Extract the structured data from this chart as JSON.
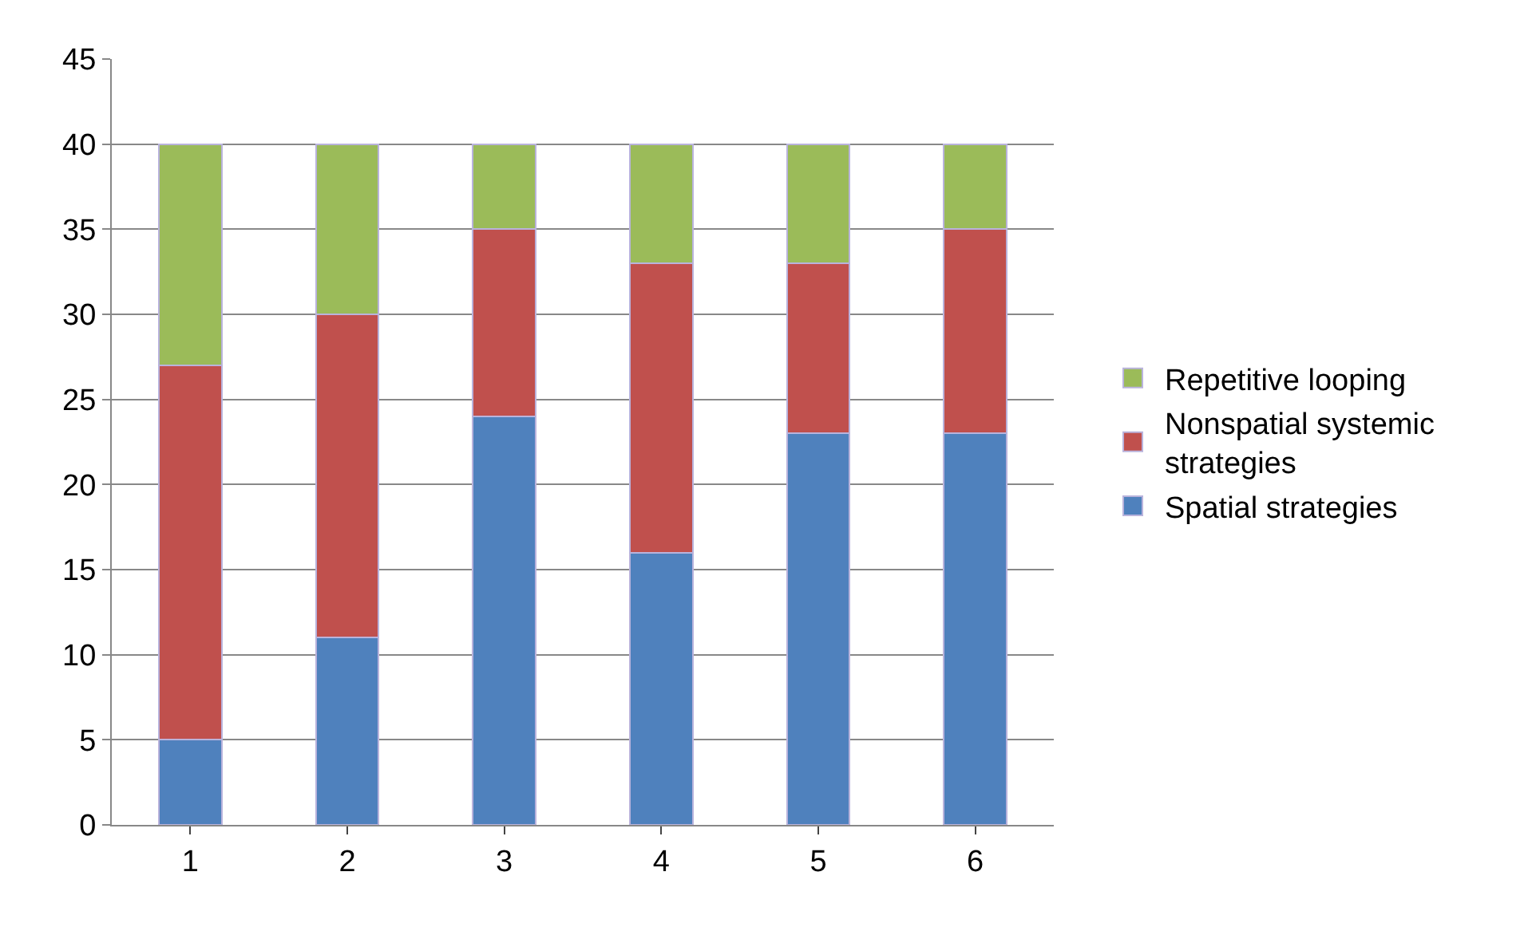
{
  "chart_data": {
    "type": "bar",
    "stacked": true,
    "categories": [
      "1",
      "2",
      "3",
      "4",
      "5",
      "6"
    ],
    "series": [
      {
        "name": "Spatial strategies",
        "color": "#4f81bd",
        "values": [
          5,
          11,
          24,
          16,
          23,
          23
        ]
      },
      {
        "name": "Nonspatial systemic strategies",
        "color": "#c0504d",
        "values": [
          22,
          19,
          11,
          17,
          10,
          12
        ]
      },
      {
        "name": "Repetitive looping",
        "color": "#9bbb59",
        "values": [
          13,
          10,
          5,
          7,
          7,
          5
        ]
      }
    ],
    "ylim": [
      0,
      45
    ],
    "yticks": [
      0,
      5,
      10,
      15,
      20,
      25,
      30,
      35,
      40,
      45
    ],
    "grid": "y",
    "legend": "right"
  }
}
